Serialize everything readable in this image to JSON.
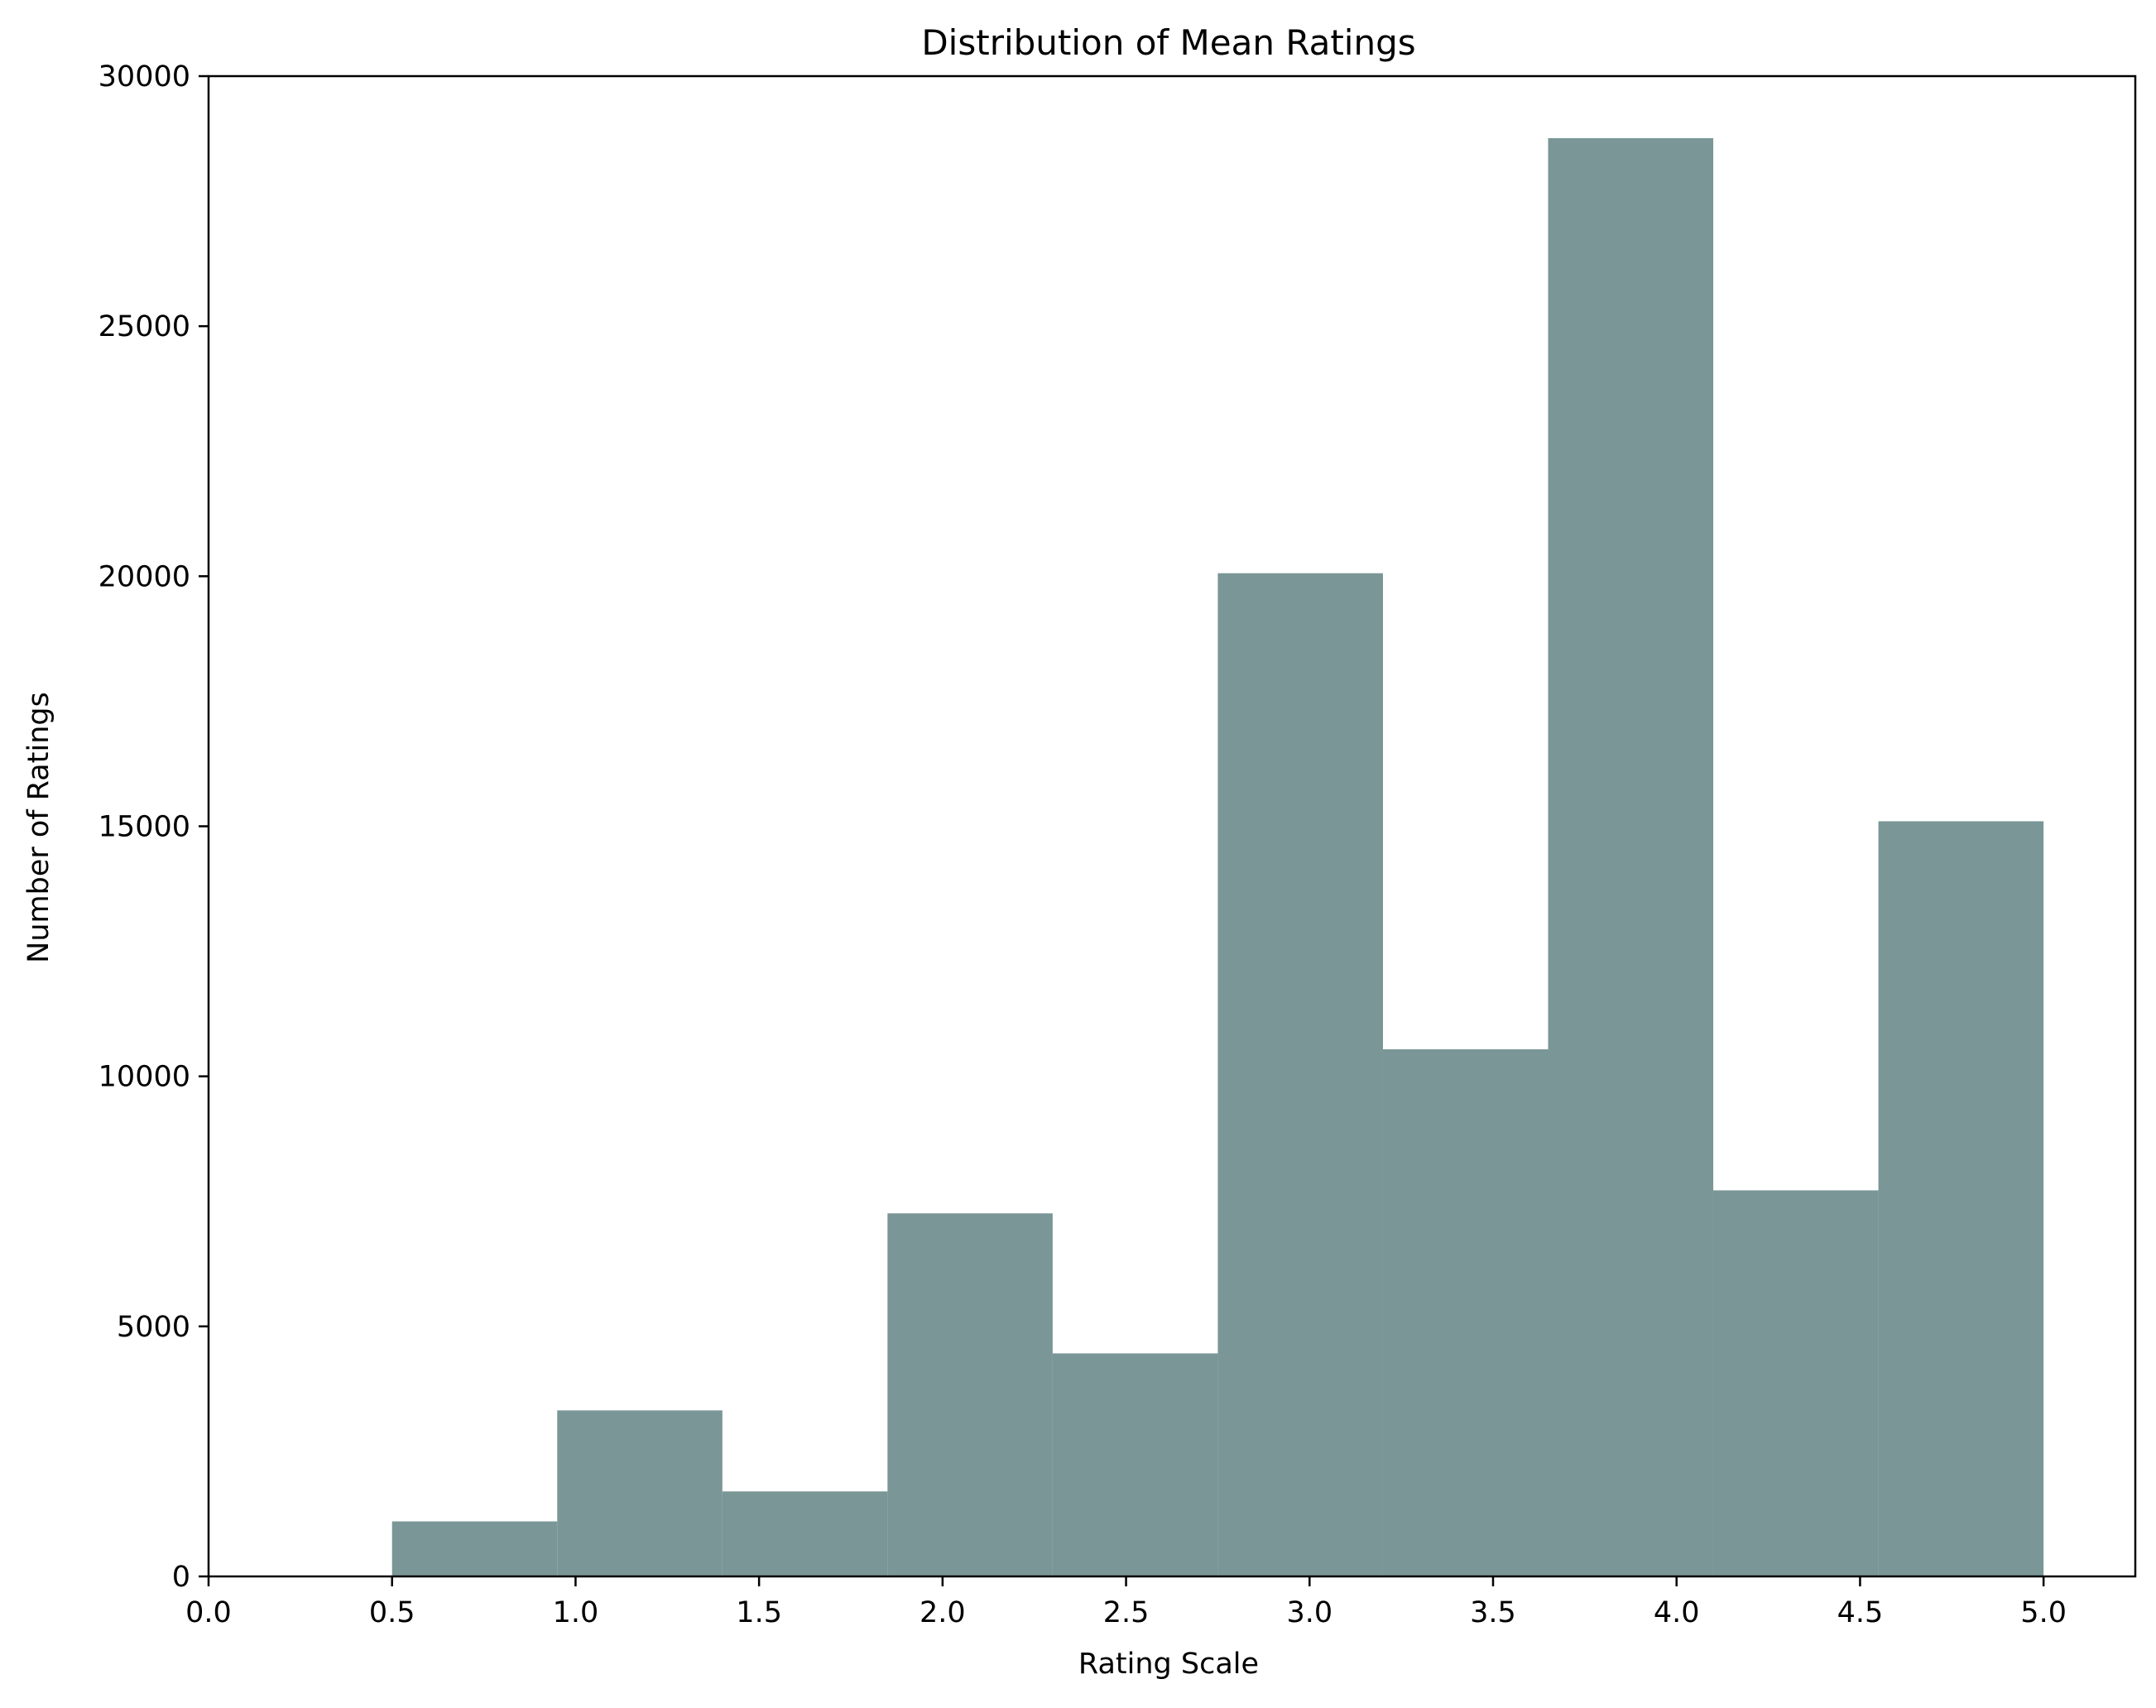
{
  "chart_data": {
    "type": "bar",
    "title": "Distribution of Mean Ratings",
    "xlabel": "Rating Scale",
    "ylabel": "Number of Ratings",
    "xlim": [
      0.0,
      5.25
    ],
    "ylim": [
      0,
      30000
    ],
    "x_ticks": [
      "0.0",
      "0.5",
      "1.0",
      "1.5",
      "2.0",
      "2.5",
      "3.0",
      "3.5",
      "4.0",
      "4.5",
      "5.0"
    ],
    "y_ticks": [
      "0",
      "5000",
      "10000",
      "15000",
      "20000",
      "25000",
      "30000"
    ],
    "bar_color": "#7a9696",
    "grid": false,
    "bins": [
      {
        "x0": 0.5,
        "x1": 0.95,
        "value": 1100
      },
      {
        "x0": 0.95,
        "x1": 1.4,
        "value": 3320
      },
      {
        "x0": 1.4,
        "x1": 1.85,
        "value": 1700
      },
      {
        "x0": 1.85,
        "x1": 2.3,
        "value": 7260
      },
      {
        "x0": 2.3,
        "x1": 2.75,
        "value": 4460
      },
      {
        "x0": 2.75,
        "x1": 3.2,
        "value": 20060
      },
      {
        "x0": 3.2,
        "x1": 3.65,
        "value": 10540
      },
      {
        "x0": 3.65,
        "x1": 4.1,
        "value": 28760
      },
      {
        "x0": 4.1,
        "x1": 4.55,
        "value": 7720
      },
      {
        "x0": 4.55,
        "x1": 5.0,
        "value": 15100
      }
    ]
  }
}
